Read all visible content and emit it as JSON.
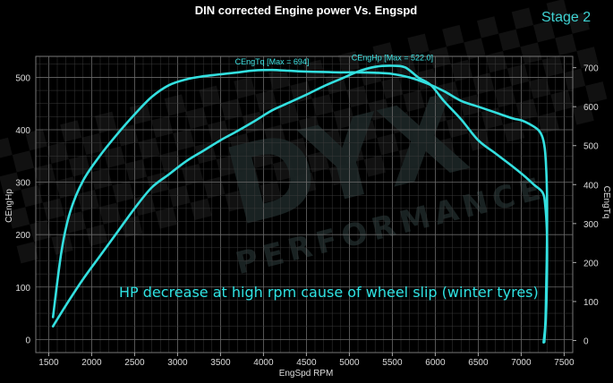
{
  "title": "DIN corrected Engine power Vs. Engspd",
  "stage_label": "Stage 2",
  "annotation": "HP decrease  at high rpm cause of wheel slip (winter  tyres)",
  "watermark": {
    "line1": "DYX",
    "line2": "PERFORMANCE"
  },
  "colors": {
    "background": "#000000",
    "grid": "#5a5a5a",
    "curve": "#33e0e0",
    "text": "#dddddd",
    "stage": "#3fd2d2"
  },
  "chart_data": {
    "type": "line",
    "title": "DIN corrected Engine power Vs. Engspd",
    "xlabel": "EngSpd RPM",
    "ylabel_left": "CEngHp",
    "ylabel_right": "CEngTq",
    "xlim": [
      1350,
      7600
    ],
    "ylim_left": [
      -25,
      540
    ],
    "ylim_right": [
      -31,
      729
    ],
    "x_ticks": [
      "1500",
      "2000",
      "2500",
      "3000",
      "3500",
      "4000",
      "4500",
      "5000",
      "5500",
      "6000",
      "6500",
      "7000",
      "7500"
    ],
    "y_left_ticks": [
      "0",
      "100",
      "200",
      "300",
      "400",
      "500"
    ],
    "y_right_ticks": [
      "0",
      "100",
      "200",
      "300",
      "400",
      "500",
      "600",
      "700"
    ],
    "grid": true,
    "series": [
      {
        "name": "CEngTq [Max = 694]",
        "axis": "right",
        "x": [
          1550,
          1650,
          1750,
          1900,
          2100,
          2300,
          2500,
          2700,
          2900,
          3100,
          3300,
          3500,
          3700,
          3900,
          4100,
          4300,
          4500,
          4700,
          4900,
          5100,
          5300,
          5500,
          5700,
          5900,
          6100,
          6300,
          6500,
          6700,
          6900,
          7000,
          7100,
          7200,
          7250,
          7280,
          7300,
          7300,
          7290,
          7280,
          7260
        ],
        "y": [
          60,
          230,
          330,
          410,
          475,
          530,
          580,
          625,
          655,
          670,
          678,
          683,
          688,
          693,
          694,
          692,
          690,
          689,
          688,
          688,
          687,
          684,
          675,
          660,
          640,
          615,
          600,
          585,
          570,
          565,
          555,
          540,
          520,
          480,
          380,
          250,
          120,
          40,
          -5
        ]
      },
      {
        "name": "CEngHp [Max = 522.0]",
        "axis": "left",
        "x": [
          1550,
          1700,
          1900,
          2100,
          2300,
          2500,
          2700,
          2900,
          3100,
          3300,
          3500,
          3700,
          3900,
          4100,
          4300,
          4500,
          4700,
          4900,
          5100,
          5300,
          5500,
          5650,
          5800,
          5950,
          6100,
          6300,
          6500,
          6700,
          6900,
          7050,
          7150,
          7250,
          7280,
          7300,
          7300,
          7290,
          7270
        ],
        "y": [
          25,
          65,
          115,
          160,
          205,
          250,
          290,
          315,
          340,
          360,
          380,
          398,
          417,
          437,
          452,
          467,
          483,
          497,
          511,
          520,
          522,
          519,
          500,
          485,
          455,
          420,
          380,
          355,
          330,
          310,
          295,
          280,
          255,
          200,
          120,
          50,
          -5
        ]
      }
    ]
  }
}
